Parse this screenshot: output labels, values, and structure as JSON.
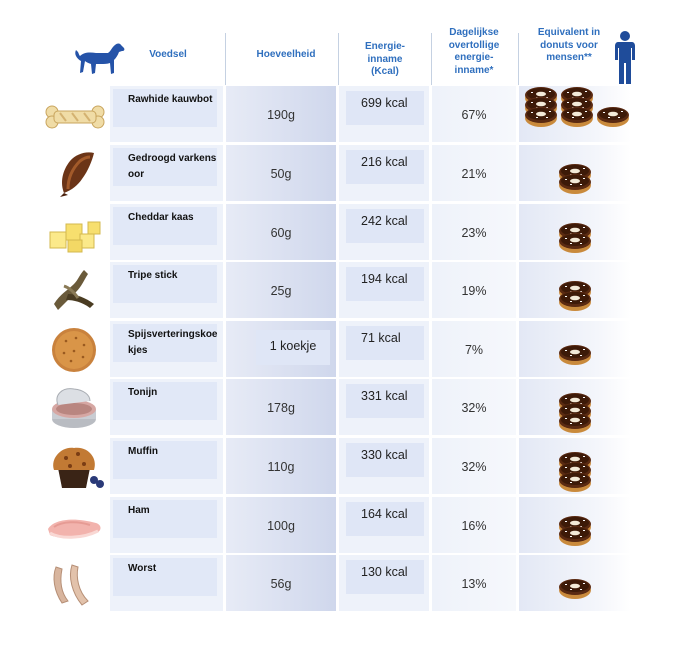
{
  "header": {
    "food": "Voedsel",
    "quantity": "Hoeveelheid",
    "energy": [
      "Energie-",
      "inname",
      "(Kcal)"
    ],
    "daily": [
      "Dagelijkse",
      "overtollige",
      "energie-",
      "inname*"
    ],
    "donuts": [
      "Equivalent in",
      "donuts voor",
      "mensen**"
    ]
  },
  "icons": {
    "header_left": "dog-icon",
    "header_right": "person-icon",
    "donut": "donut-icon"
  },
  "colors": {
    "header_text": "#2f6fbe",
    "dog": "#2553a8",
    "person": "#1f4c9a"
  },
  "rows": [
    {
      "name": "Rawhide kauwbot",
      "qty": "190g",
      "kcal": "699 kcal",
      "pct": "67%",
      "donuts": 7,
      "food_icon": "rawhide-bone-icon"
    },
    {
      "name": "Gedroogd varkensoor",
      "qty": "50g",
      "kcal": "216 kcal",
      "pct": "21%",
      "donuts": 2,
      "food_icon": "dried-pig-ear-icon"
    },
    {
      "name": "Cheddar kaas",
      "qty": "60g",
      "kcal": "242 kcal",
      "pct": "23%",
      "donuts": 2,
      "food_icon": "cheese-cubes-icon"
    },
    {
      "name": "Tripe stick",
      "qty": "25g",
      "kcal": "194 kcal",
      "pct": "19%",
      "donuts": 2,
      "food_icon": "tripe-stick-icon"
    },
    {
      "name": "Spijsverteringskoekjes",
      "qty": "1 koekje",
      "kcal": "71 kcal",
      "pct": "7%",
      "donuts": 1,
      "food_icon": "digestive-biscuit-icon"
    },
    {
      "name": "Tonijn",
      "qty": "178g",
      "kcal": "331 kcal",
      "pct": "32%",
      "donuts": 3,
      "food_icon": "tuna-can-icon"
    },
    {
      "name": "Muffin",
      "qty": "110g",
      "kcal": "330 kcal",
      "pct": "32%",
      "donuts": 3,
      "food_icon": "muffin-icon"
    },
    {
      "name": "Ham",
      "qty": "100g",
      "kcal": "164 kcal",
      "pct": "16%",
      "donuts": 2,
      "food_icon": "ham-slices-icon"
    },
    {
      "name": "Worst",
      "qty": "56g",
      "kcal": "130 kcal",
      "pct": "13%",
      "donuts": 1,
      "food_icon": "sausages-icon"
    }
  ]
}
